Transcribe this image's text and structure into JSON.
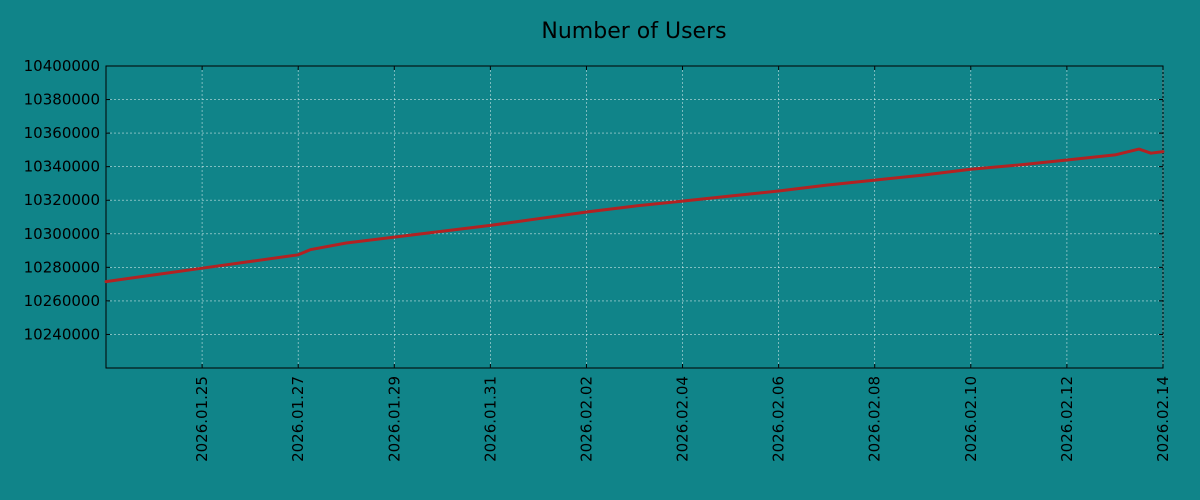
{
  "chart_data": {
    "type": "line",
    "title": "Number of Users",
    "xlabel": "",
    "ylabel": "",
    "x_ticks": [
      "2026.01.25",
      "2026.01.27",
      "2026.01.29",
      "2026.01.31",
      "2026.02.02",
      "2026.02.04",
      "2026.02.06",
      "2026.02.08",
      "2026.02.10",
      "2026.02.12",
      "2026.02.14"
    ],
    "y_ticks": [
      10240000,
      10260000,
      10280000,
      10300000,
      10320000,
      10340000,
      10360000,
      10380000,
      10400000
    ],
    "xlim": [
      "2026.01.23",
      "2026.02.14"
    ],
    "ylim": [
      10220000,
      10400000
    ],
    "grid": true,
    "series": [
      {
        "color": "#b22222",
        "x": [
          "2026.01.23",
          "2026.01.24",
          "2026.01.25",
          "2026.01.26",
          "2026.01.27",
          "2026.01.27 06:00",
          "2026.01.28",
          "2026.01.29",
          "2026.01.30",
          "2026.01.31",
          "2026.02.01",
          "2026.02.02",
          "2026.02.03",
          "2026.02.04",
          "2026.02.05",
          "2026.02.06",
          "2026.02.07",
          "2026.02.08",
          "2026.02.09",
          "2026.02.10",
          "2026.02.11",
          "2026.02.12",
          "2026.02.13",
          "2026.02.13 12:00",
          "2026.02.13 18:00",
          "2026.02.14"
        ],
        "y": [
          10271500,
          10275500,
          10279500,
          10283500,
          10287500,
          10290500,
          10294500,
          10298000,
          10301500,
          10305000,
          10309000,
          10313000,
          10316500,
          10319500,
          10322500,
          10325500,
          10329000,
          10332000,
          10335000,
          10338500,
          10341000,
          10344000,
          10347000,
          10350500,
          10348000,
          10349000
        ]
      }
    ]
  }
}
